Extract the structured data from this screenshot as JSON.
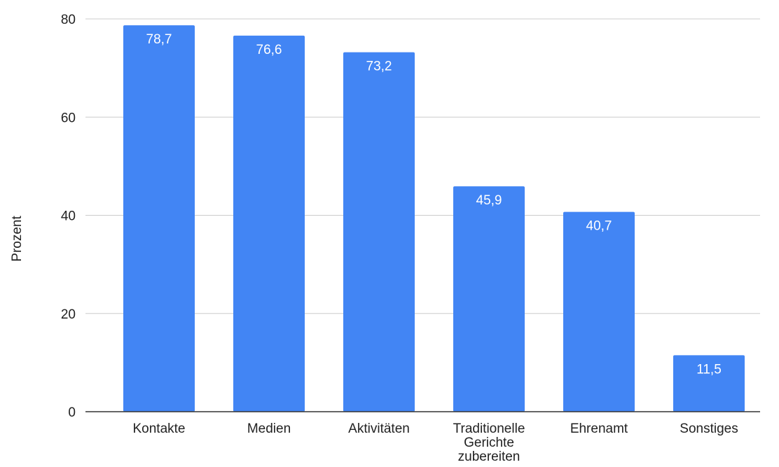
{
  "chart_data": {
    "type": "bar",
    "title": "",
    "xlabel": "",
    "ylabel": "Prozent",
    "categories": [
      [
        "Kontakte"
      ],
      [
        "Medien"
      ],
      [
        "Aktivitäten"
      ],
      [
        "Traditionelle",
        "Gerichte",
        "zubereiten"
      ],
      [
        "Ehrenamt"
      ],
      [
        "Sonstiges"
      ]
    ],
    "values": [
      78.7,
      76.6,
      73.2,
      45.9,
      40.7,
      11.5
    ],
    "value_labels": [
      "78,7",
      "76,6",
      "73,2",
      "45,9",
      "40,7",
      "11,5"
    ],
    "ylim": [
      0,
      80
    ],
    "yticks": [
      0,
      20,
      40,
      60,
      80
    ],
    "ytick_labels": [
      "0",
      "20",
      "40",
      "60",
      "80"
    ],
    "grid": true,
    "legend": "none",
    "colors": {
      "bar": "#4285f4",
      "grid": "#cccccc",
      "axis": "#333333",
      "text": "#222222",
      "data_label": "#ffffff"
    }
  }
}
